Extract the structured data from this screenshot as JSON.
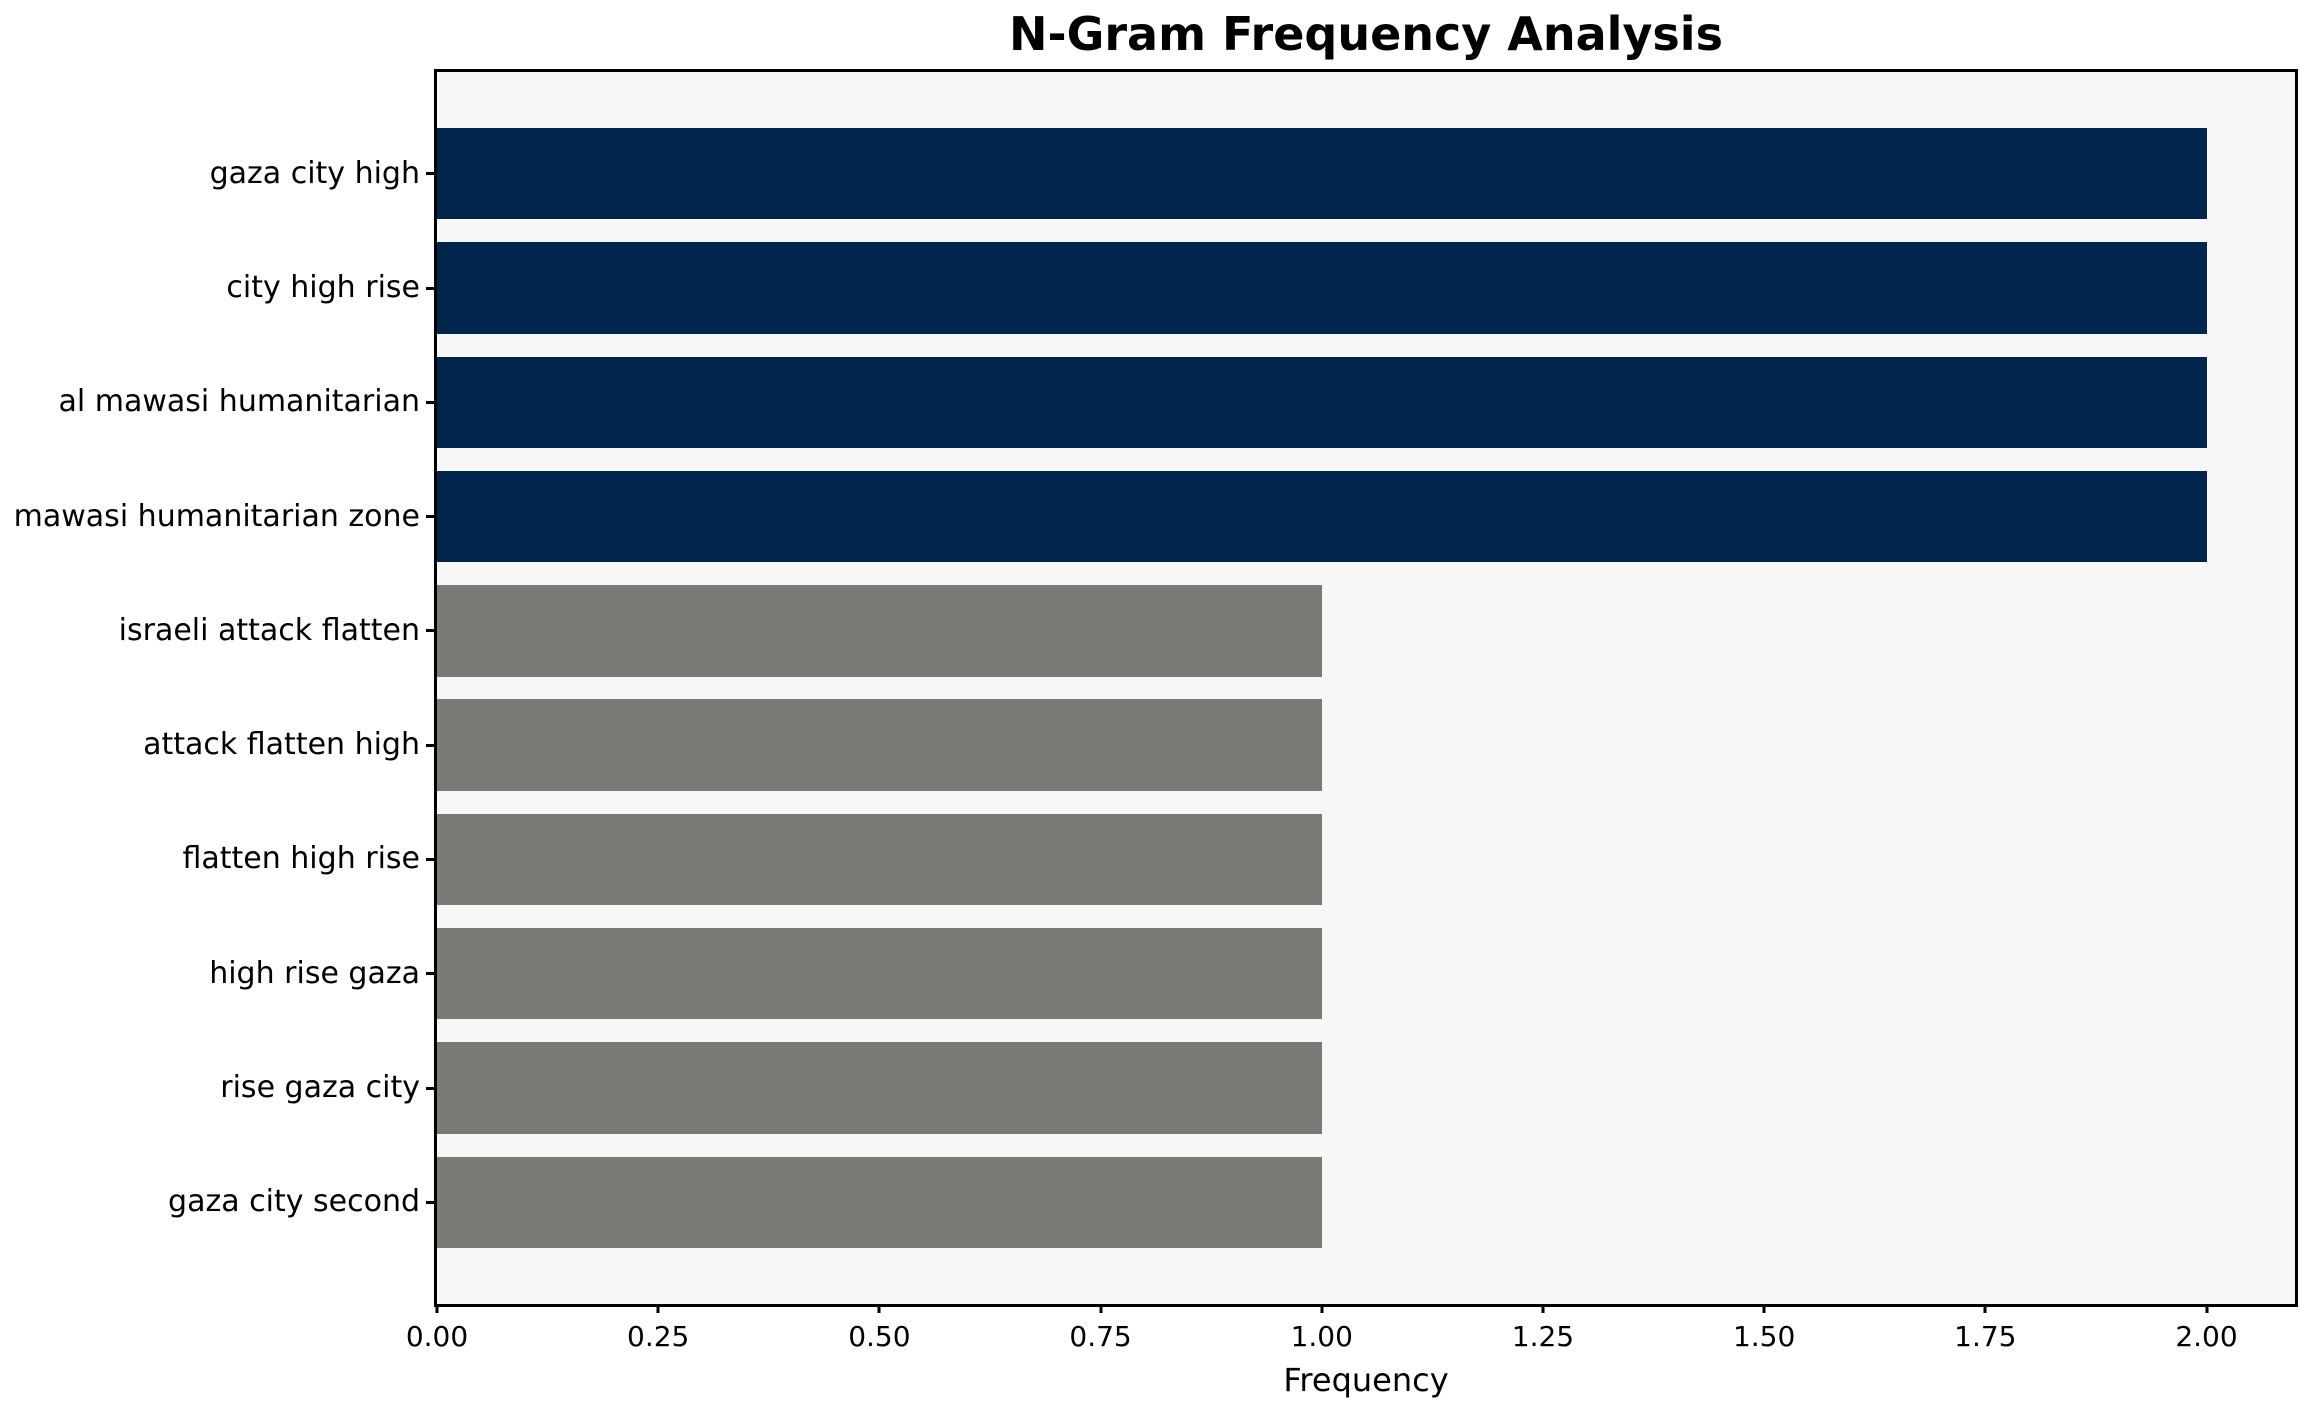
{
  "figure": {
    "background": "#ffffff",
    "plot_background": "#f7f7f7",
    "text_color": "#000000"
  },
  "chart_data": {
    "type": "bar",
    "orientation": "horizontal",
    "title": "N-Gram Frequency Analysis",
    "xlabel": "Frequency",
    "ylabel": "",
    "categories": [
      "gaza city high",
      "city high rise",
      "al mawasi humanitarian",
      "mawasi humanitarian zone",
      "israeli attack flatten",
      "attack flatten high",
      "flatten high rise",
      "high rise gaza",
      "rise gaza city",
      "gaza city second"
    ],
    "values": [
      2,
      2,
      2,
      2,
      1,
      1,
      1,
      1,
      1,
      1
    ],
    "bar_colors": [
      "#02254e",
      "#02254e",
      "#02254e",
      "#02254e",
      "#797a76",
      "#797a76",
      "#797a76",
      "#797a76",
      "#797a76",
      "#797a76"
    ],
    "xlim": [
      0,
      2.1
    ],
    "xticks": [
      0,
      0.25,
      0.5,
      0.75,
      1.0,
      1.25,
      1.5,
      1.75,
      2.0
    ],
    "xtick_labels": [
      "0.00",
      "0.25",
      "0.50",
      "0.75",
      "1.00",
      "1.25",
      "1.50",
      "1.75",
      "2.00"
    ],
    "grid": false,
    "legend": null,
    "colors": {
      "high_frequency_bar": "#02254e",
      "low_frequency_bar": "#797a76"
    }
  }
}
